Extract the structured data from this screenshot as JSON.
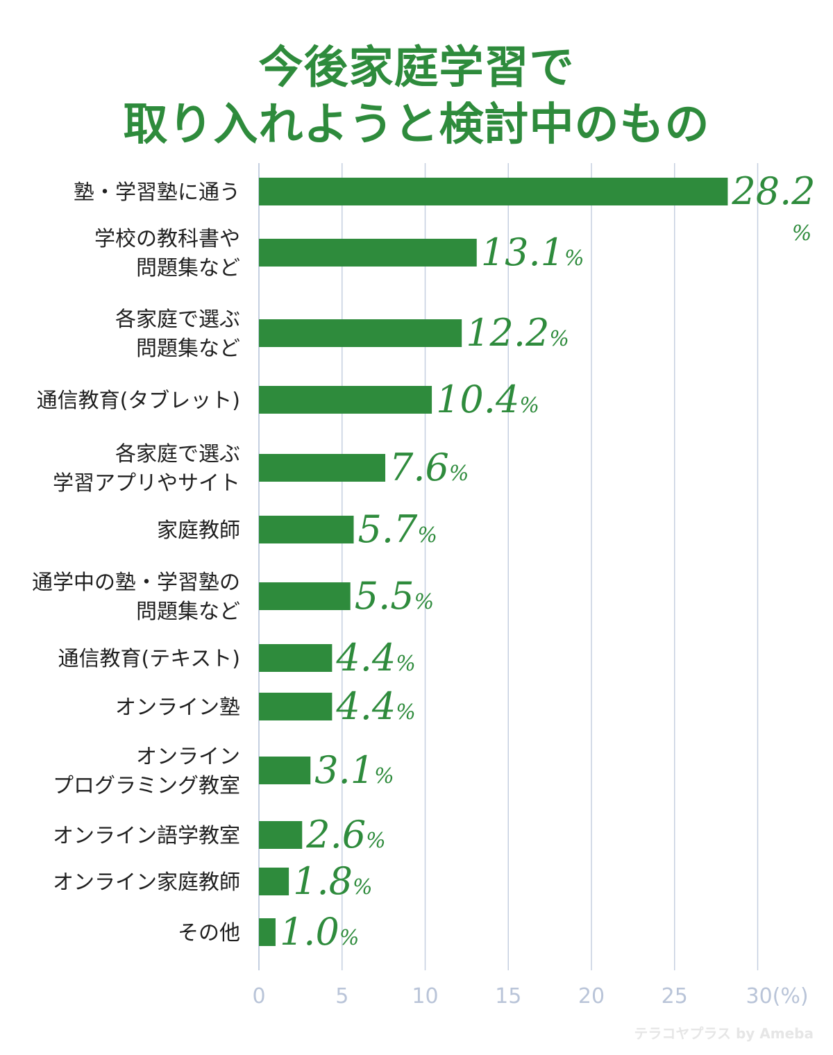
{
  "title_line1": "今後家庭学習で",
  "title_line2": "取り入れようと検討中のもの",
  "watermark": "テラコヤプラス by Ameba",
  "colors": {
    "bar": "#2e8b3c",
    "grid": "#c5cfe0",
    "tick": "#b9c4d8",
    "label": "#1f1f1f"
  },
  "chart_data": {
    "type": "bar",
    "orientation": "horizontal",
    "title": "今後家庭学習で取り入れようと検討中のもの",
    "categories": [
      [
        "塾・学習塾に通う"
      ],
      [
        "学校の教科書や",
        "問題集など"
      ],
      [
        "各家庭で選ぶ",
        "問題集など"
      ],
      [
        "通信教育(タブレット)"
      ],
      [
        "各家庭で選ぶ",
        "学習アプリやサイト"
      ],
      [
        "家庭教師"
      ],
      [
        "通学中の塾・学習塾の",
        "問題集など"
      ],
      [
        "通信教育(テキスト)"
      ],
      [
        "オンライン塾"
      ],
      [
        "オンライン",
        "プログラミング教室"
      ],
      [
        "オンライン語学教室"
      ],
      [
        "オンライン家庭教師"
      ],
      [
        "その他"
      ]
    ],
    "values": [
      28.2,
      13.1,
      12.2,
      10.4,
      7.6,
      5.7,
      5.5,
      4.4,
      4.4,
      3.1,
      2.6,
      1.8,
      1.0
    ],
    "value_labels": [
      "28.2",
      "13.1",
      "12.2",
      "10.4",
      "7.6",
      "5.7",
      "5.5",
      "4.4",
      "4.4",
      "3.1",
      "2.6",
      "1.8",
      "1.0"
    ],
    "value_unit": "%",
    "xlim": [
      0,
      30
    ],
    "xticks": [
      "0",
      "5",
      "10",
      "15",
      "20",
      "25",
      "30(%)"
    ],
    "xtick_values": [
      0,
      5,
      10,
      15,
      20,
      25,
      30
    ],
    "grid": true
  }
}
